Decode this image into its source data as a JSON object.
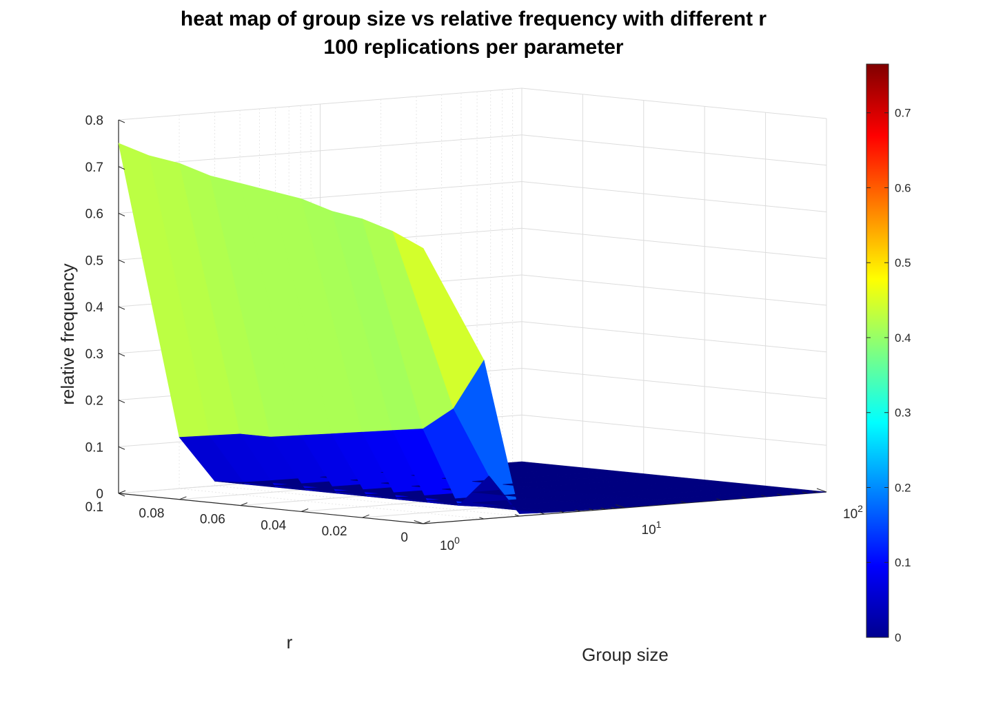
{
  "chart_data": {
    "type": "surface",
    "title": [
      "heat map of group size vs relative frequency with different r",
      "100 replications per parameter"
    ],
    "xlabel": "Group size",
    "ylabel": "r",
    "zlabel": "relative frequency",
    "x_scale": "log",
    "x_range": [
      1,
      100
    ],
    "y_range": [
      0,
      0.1
    ],
    "z_range": [
      0,
      0.8
    ],
    "x_ticks": [
      {
        "base": "10",
        "exp": "0"
      },
      {
        "base": "10",
        "exp": "1"
      },
      {
        "base": "10",
        "exp": "2"
      }
    ],
    "y_ticks": [
      "0",
      "0.02",
      "0.04",
      "0.06",
      "0.08",
      "0.1"
    ],
    "z_ticks": [
      "0",
      "0.1",
      "0.2",
      "0.3",
      "0.4",
      "0.5",
      "0.6",
      "0.7",
      "0.8"
    ],
    "grid": true,
    "colormap": "jet",
    "colorbar": {
      "range": [
        0,
        0.765
      ],
      "ticks": [
        "0",
        "0.1",
        "0.2",
        "0.3",
        "0.4",
        "0.5",
        "0.6",
        "0.7"
      ]
    },
    "group_sizes": [
      1,
      2,
      3,
      4,
      5,
      10,
      20,
      50,
      100
    ],
    "r_values": [
      0,
      0.01,
      0.02,
      0.03,
      0.04,
      0.05,
      0.06,
      0.07,
      0.08,
      0.09,
      0.1
    ],
    "z": [
      [
        0.59,
        0.34,
        0.005,
        0.003,
        0.002,
        0.001,
        0.001,
        0.0,
        0.0
      ],
      [
        0.62,
        0.23,
        0.08,
        0.003,
        0.002,
        0.001,
        0.001,
        0.0,
        0.0
      ],
      [
        0.64,
        0.18,
        0.01,
        0.003,
        0.002,
        0.001,
        0.001,
        0.0,
        0.0
      ],
      [
        0.65,
        0.17,
        0.01,
        0.003,
        0.002,
        0.001,
        0.001,
        0.0,
        0.0
      ],
      [
        0.67,
        0.16,
        0.01,
        0.003,
        0.002,
        0.001,
        0.001,
        0.0,
        0.0
      ],
      [
        0.68,
        0.15,
        0.01,
        0.003,
        0.002,
        0.001,
        0.001,
        0.0,
        0.0
      ],
      [
        0.69,
        0.14,
        0.01,
        0.003,
        0.002,
        0.001,
        0.001,
        0.0,
        0.0
      ],
      [
        0.7,
        0.13,
        0.01,
        0.003,
        0.002,
        0.001,
        0.001,
        0.0,
        0.0
      ],
      [
        0.72,
        0.13,
        0.01,
        0.003,
        0.002,
        0.001,
        0.001,
        0.0,
        0.0
      ],
      [
        0.73,
        0.12,
        0.01,
        0.003,
        0.002,
        0.001,
        0.001,
        0.0,
        0.0
      ],
      [
        0.75,
        0.11,
        0.01,
        0.003,
        0.002,
        0.001,
        0.001,
        0.0,
        0.0
      ]
    ]
  }
}
